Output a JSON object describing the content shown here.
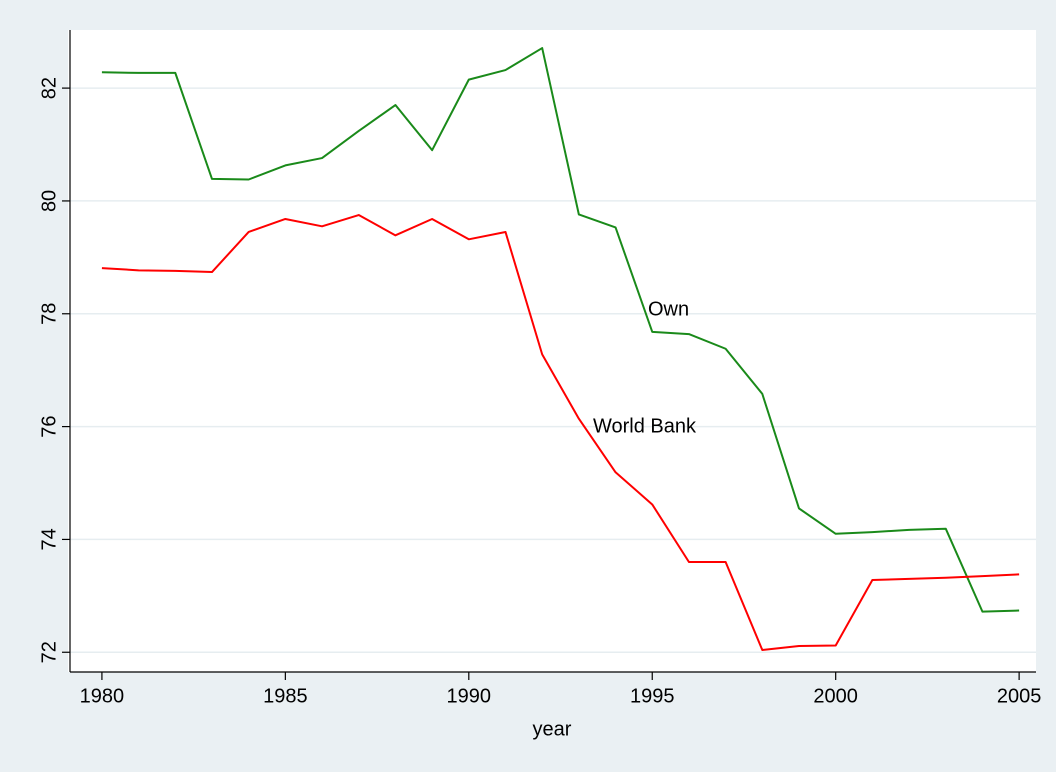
{
  "chart_data": {
    "type": "line",
    "x_label": "year",
    "x": [
      1980,
      1981,
      1982,
      1983,
      1984,
      1985,
      1986,
      1987,
      1988,
      1989,
      1990,
      1991,
      1992,
      1993,
      1994,
      1995,
      1996,
      1997,
      1998,
      1999,
      2000,
      2001,
      2002,
      2003,
      2004,
      2005
    ],
    "series": [
      {
        "name": "Own",
        "color": "#1a8a1a",
        "values": [
          82.28,
          82.27,
          82.27,
          80.39,
          80.38,
          80.63,
          80.76,
          81.24,
          81.7,
          80.9,
          82.15,
          82.32,
          82.71,
          79.76,
          79.53,
          77.68,
          77.64,
          77.38,
          76.58,
          74.55,
          74.1,
          74.13,
          74.17,
          74.19,
          72.72,
          72.74
        ]
      },
      {
        "name": "World Bank",
        "color": "#ff0000",
        "values": [
          78.81,
          78.77,
          78.76,
          78.74,
          79.45,
          79.68,
          79.55,
          79.75,
          79.39,
          79.68,
          79.32,
          79.45,
          77.28,
          76.14,
          75.19,
          74.62,
          73.6,
          73.6,
          72.04,
          72.11,
          72.12,
          73.28,
          73.3,
          73.32,
          73.35,
          73.38
        ]
      }
    ],
    "xlim": [
      1979.13,
      2005.46
    ],
    "xticks": [
      1980,
      1985,
      1990,
      1995,
      2000,
      2005
    ],
    "ylim": [
      71.65,
      83.03
    ],
    "yticks": [
      72,
      74,
      76,
      78,
      80,
      82
    ],
    "grid": true
  }
}
